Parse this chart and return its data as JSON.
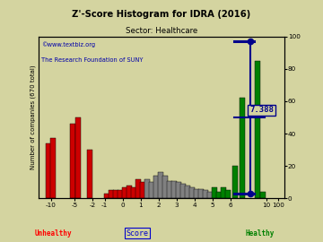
{
  "title": "Z'-Score Histogram for IDRA (2016)",
  "subtitle": "Sector: Healthcare",
  "watermark1": "©www.textbiz.org",
  "watermark2": "The Research Foundation of SUNY",
  "ylabel_left": "Number of companies (670 total)",
  "xlabel": "Score",
  "label_unhealthy": "Unhealthy",
  "label_healthy": "Healthy",
  "score_label": "7.388",
  "score_value": 7.388,
  "bg_color": "#d4d4a0",
  "grid_color": "#aaaaaa",
  "bars": [
    [
      -10.5,
      34,
      "#cc0000"
    ],
    [
      -9.5,
      37,
      "#cc0000"
    ],
    [
      -5.5,
      46,
      "#cc0000"
    ],
    [
      -4.5,
      50,
      "#cc0000"
    ],
    [
      -2.5,
      30,
      "#cc0000"
    ],
    [
      -0.875,
      3,
      "#cc0000"
    ],
    [
      -0.625,
      5,
      "#cc0000"
    ],
    [
      -0.375,
      5,
      "#cc0000"
    ],
    [
      -0.125,
      5,
      "#cc0000"
    ],
    [
      0.125,
      7,
      "#cc0000"
    ],
    [
      0.375,
      8,
      "#cc0000"
    ],
    [
      0.625,
      7,
      "#cc0000"
    ],
    [
      0.875,
      12,
      "#cc0000"
    ],
    [
      1.125,
      10,
      "#cc0000"
    ],
    [
      1.375,
      12,
      "#808080"
    ],
    [
      1.625,
      10,
      "#808080"
    ],
    [
      1.875,
      14,
      "#808080"
    ],
    [
      2.125,
      16,
      "#808080"
    ],
    [
      2.375,
      14,
      "#808080"
    ],
    [
      2.625,
      11,
      "#808080"
    ],
    [
      2.875,
      11,
      "#808080"
    ],
    [
      3.125,
      10,
      "#808080"
    ],
    [
      3.375,
      9,
      "#808080"
    ],
    [
      3.625,
      8,
      "#808080"
    ],
    [
      3.875,
      7,
      "#808080"
    ],
    [
      4.125,
      6,
      "#808080"
    ],
    [
      4.375,
      6,
      "#808080"
    ],
    [
      4.625,
      5,
      "#808080"
    ],
    [
      4.875,
      4,
      "#808080"
    ],
    [
      5.125,
      7,
      "#008000"
    ],
    [
      5.375,
      4,
      "#008000"
    ],
    [
      5.625,
      7,
      "#008000"
    ],
    [
      5.875,
      5,
      "#008000"
    ],
    [
      6.25,
      20,
      "#008000"
    ],
    [
      6.75,
      62,
      "#008000"
    ],
    [
      8.5,
      85,
      "#008000"
    ],
    [
      9.5,
      4,
      "#008000"
    ]
  ],
  "xtick_pos": [
    -11,
    -5,
    -2.5,
    -1.5,
    0,
    1,
    2,
    3,
    4,
    5,
    6.5,
    8.5,
    9.5
  ],
  "xtick_labels": [
    "-10",
    "-5",
    "-2",
    "-1",
    "0",
    "1",
    "2",
    "3",
    "4",
    "5",
    "6",
    "10",
    "100"
  ],
  "ytick_right": [
    0,
    20,
    40,
    60,
    80,
    100
  ],
  "xlim": [
    -12.5,
    10.5
  ],
  "ylim": [
    0,
    100
  ]
}
